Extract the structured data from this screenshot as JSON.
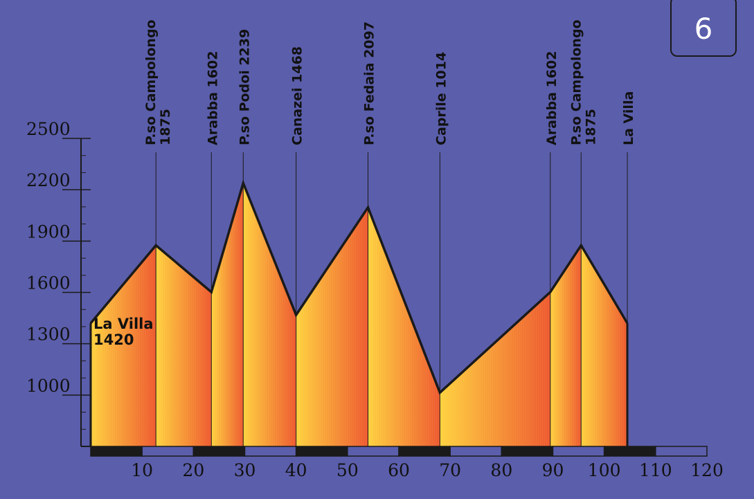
{
  "badge": "6",
  "colors": {
    "background": "#5b5eab",
    "gradient_start": "#ffd23f",
    "gradient_end": "#ee5a2f",
    "profile_line": "#1a1a1a"
  },
  "chart_data": {
    "type": "area",
    "title": "",
    "xlabel": "",
    "ylabel": "",
    "xlim": [
      0,
      120
    ],
    "ylim": [
      700,
      2500
    ],
    "x_ticks": [
      10,
      20,
      30,
      40,
      50,
      60,
      70,
      80,
      90,
      100,
      110,
      120
    ],
    "y_ticks": [
      1000,
      1300,
      1600,
      1900,
      2200,
      2500
    ],
    "series": [
      {
        "x": [
          0,
          12.7,
          23.5,
          29.7,
          40.0,
          54.0,
          68.0,
          89.5,
          95.5,
          104.5
        ],
        "y": [
          1420,
          1875,
          1602,
          2239,
          1468,
          2097,
          1014,
          1602,
          1875,
          1420
        ]
      }
    ],
    "start_label": [
      "La Villa",
      "1420"
    ],
    "annotations": [
      {
        "x": 12.7,
        "lines": [
          "P.so Campolongo",
          "1875"
        ]
      },
      {
        "x": 23.5,
        "lines": [
          "Arabba  1602"
        ]
      },
      {
        "x": 29.7,
        "lines": [
          "P.so Podoi  2239"
        ]
      },
      {
        "x": 40.0,
        "lines": [
          "Canazei  1468"
        ]
      },
      {
        "x": 54.0,
        "lines": [
          "P.so Fedaia  2097"
        ]
      },
      {
        "x": 68.0,
        "lines": [
          "Caprile  1014"
        ]
      },
      {
        "x": 89.5,
        "lines": [
          "Arabba  1602"
        ]
      },
      {
        "x": 95.5,
        "lines": [
          "P.so Campolongo",
          "1875"
        ]
      },
      {
        "x": 104.5,
        "lines": [
          "La Villa"
        ]
      }
    ]
  }
}
